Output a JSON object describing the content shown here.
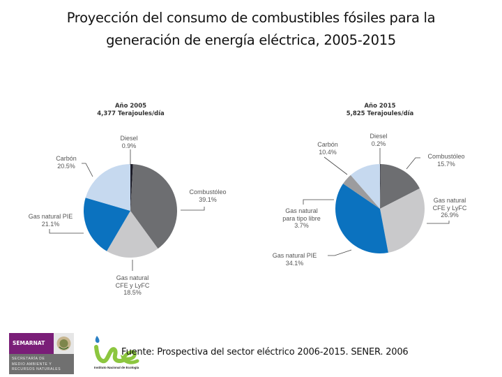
{
  "slide": {
    "title_line1": "Proyección del consumo de combustibles fósiles para la",
    "title_line2": "generación de energía eléctrica, 2005-2015",
    "source": "Fuente: Prospectiva del sector eléctrico 2006-2015. SENER. 2006"
  },
  "logos": {
    "semarnat": {
      "name": "SEMARNAT",
      "subtitle": "SECRETARÍA DE\nMEDIO AMBIENTE Y\nRECURSOS NATURALES",
      "color": "#7a1e78"
    },
    "ine": {
      "caption": "Instituto Nacional de Ecología",
      "color": "#8cc63f",
      "drop_color": "#2a7fc4"
    }
  },
  "colors": {
    "diesel": "#1c1c28",
    "combustoleo": "#6d6e71",
    "gas_cfe": "#c9c9cb",
    "gas_pie": "#0b72bf",
    "gas_libre": "#9c9c9e",
    "carbon": "#c6d9ef"
  },
  "chart_data": [
    {
      "type": "pie",
      "title": "Año 2005",
      "subtitle": "4,377 Terajoules/día",
      "labels": [
        "Diesel",
        "Combustóleo",
        "Gas natural CFE y LyFC",
        "Gas natural PIE",
        "Carbón"
      ],
      "values": [
        0.9,
        39.1,
        18.5,
        21.1,
        20.5
      ],
      "value_labels": [
        "0.9%",
        "39.1%",
        "18.5%",
        "21.1%",
        "20.5%"
      ],
      "start": "12 o'clock, clockwise"
    },
    {
      "type": "pie",
      "title": "Año 2015",
      "subtitle": "5,825 Terajoules/día",
      "labels": [
        "Diesel",
        "Combustóleo",
        "Gas natural CFE y LyFC",
        "Gas natural PIE",
        "Gas natural para tipo libre",
        "Carbón"
      ],
      "values": [
        0.2,
        15.7,
        26.9,
        34.1,
        3.7,
        10.4
      ],
      "value_labels": [
        "0.2%",
        "15.7%",
        "26.9%",
        "34.1%",
        "3.7%",
        "10.4%"
      ],
      "start": "12 o'clock, clockwise"
    }
  ],
  "labels2005": {
    "title": "Año 2005",
    "subtitle": "4,377 Terajoules/día",
    "diesel_name": "Diesel",
    "diesel_val": "0.9%",
    "carbon_name": "Carbón",
    "carbon_val": "20.5%",
    "comb_name": "Combustóleo",
    "comb_val": "39.1%",
    "pie_name": "Gas natural PIE",
    "pie_val": "21.1%",
    "cfe_name1": "Gas natural",
    "cfe_name2": "CFE y LyFC",
    "cfe_val": "18.5%"
  },
  "labels2015": {
    "title": "Año 2015",
    "subtitle": "5,825 Terajoules/día",
    "diesel_name": "Diesel",
    "diesel_val": "0.2%",
    "carbon_name": "Carbón",
    "carbon_val": "10.4%",
    "comb_name": "Combustóleo",
    "comb_val": "15.7%",
    "cfe_name1": "Gas natural",
    "cfe_name2": "CFE y LyFC",
    "cfe_val": "26.9%",
    "libre_name1": "Gas natural",
    "libre_name2": "para tipo libre",
    "libre_val": "3.7%",
    "pie_name": "Gas natural PIE",
    "pie_val": "34.1%"
  }
}
